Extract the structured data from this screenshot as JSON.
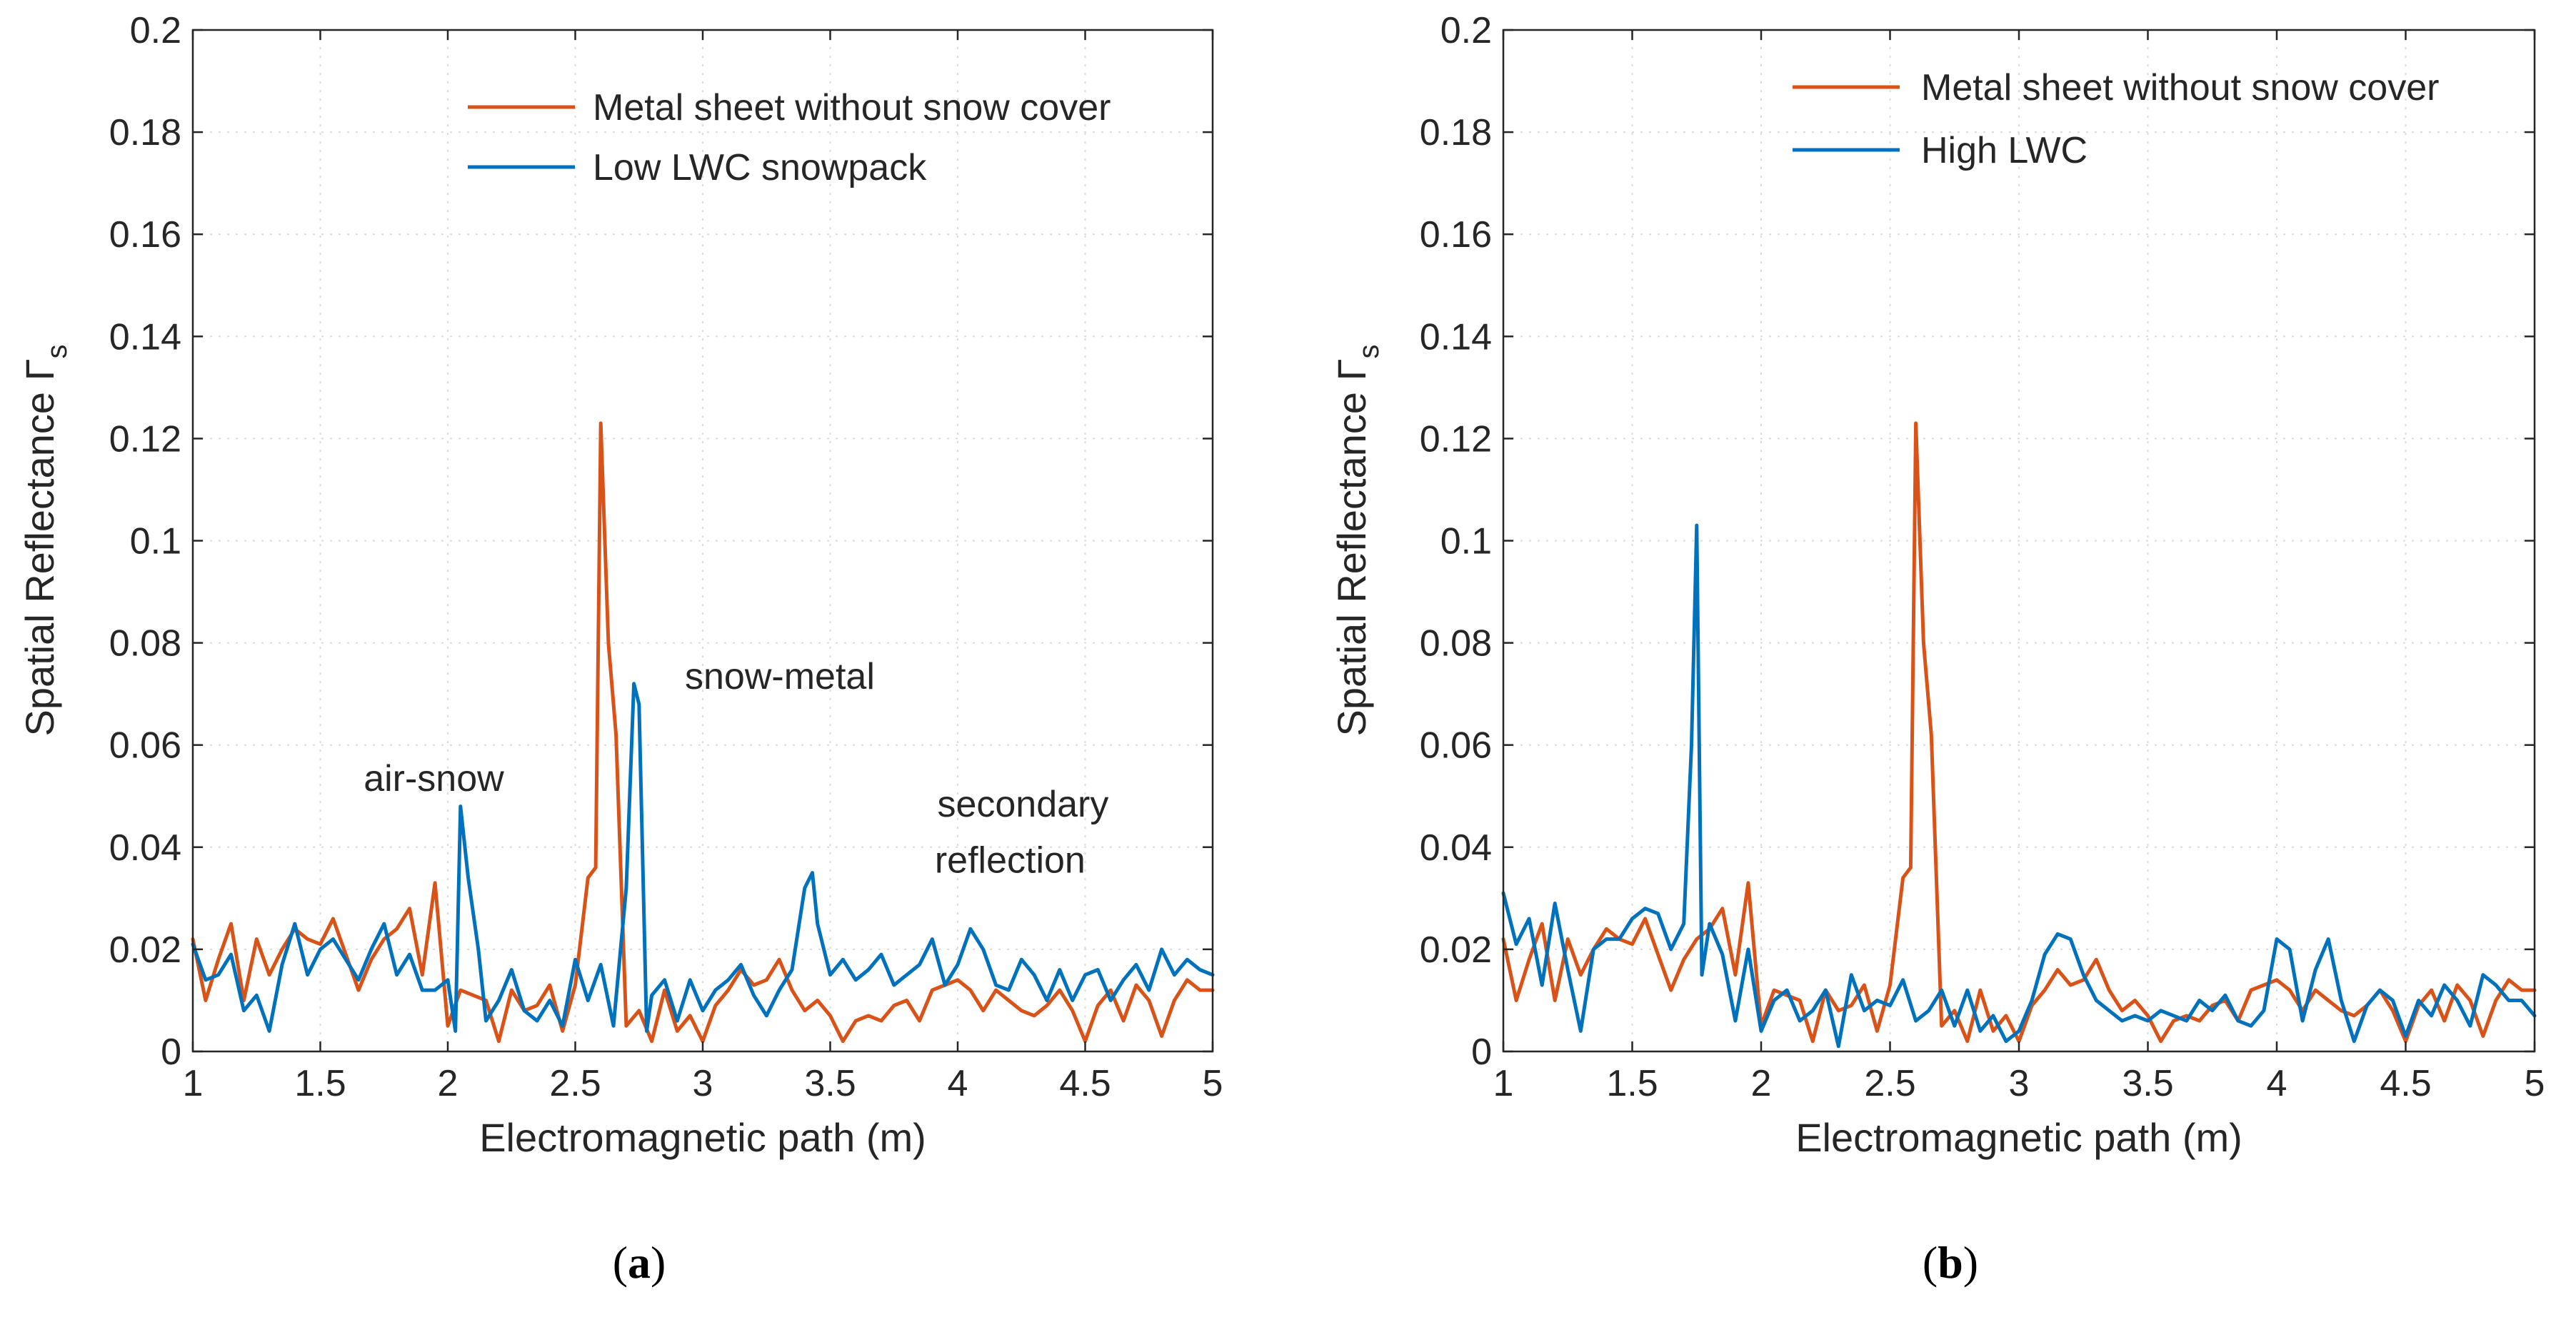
{
  "chart_data": [
    {
      "type": "line",
      "panel": "a",
      "caption": {
        "open": "(",
        "letter": "a",
        "close": ")"
      },
      "xlabel": "Electromagnetic path (m)",
      "ylabel": "Spatial Reflectance Γ",
      "ylabel_subscript": "s",
      "xlim": [
        1,
        5
      ],
      "ylim": [
        0,
        0.2
      ],
      "xticks": [
        1,
        1.5,
        2,
        2.5,
        3,
        3.5,
        4,
        4.5,
        5
      ],
      "xtick_labels": [
        "1",
        "1.5",
        "2",
        "2.5",
        "3",
        "3.5",
        "4",
        "4.5",
        "5"
      ],
      "yticks": [
        0,
        0.02,
        0.04,
        0.06,
        0.08,
        0.1,
        0.12,
        0.14,
        0.16,
        0.18,
        0.2
      ],
      "ytick_labels": [
        "0",
        "0.02",
        "0.04",
        "0.06",
        "0.08",
        "0.1",
        "0.12",
        "0.14",
        "0.16",
        "0.18",
        "0.2"
      ],
      "grid": true,
      "legend_position": "top-right",
      "annotations": [
        {
          "text": "air-snow",
          "x": 1.67,
          "y": 0.051
        },
        {
          "text": "snow-metal",
          "x": 2.93,
          "y": 0.071
        },
        {
          "text": "secondary",
          "x": 3.92,
          "y": 0.046
        },
        {
          "text": "reflection",
          "x": 3.91,
          "y": 0.035
        }
      ],
      "series": [
        {
          "name": "Metal sheet without snow cover",
          "color": "#D95319",
          "x": [
            1.0,
            1.05,
            1.1,
            1.15,
            1.2,
            1.25,
            1.3,
            1.35,
            1.4,
            1.45,
            1.5,
            1.55,
            1.6,
            1.65,
            1.7,
            1.75,
            1.8,
            1.85,
            1.9,
            1.95,
            2.0,
            2.05,
            2.1,
            2.15,
            2.2,
            2.25,
            2.3,
            2.35,
            2.4,
            2.45,
            2.5,
            2.55,
            2.58,
            2.6,
            2.63,
            2.66,
            2.7,
            2.75,
            2.8,
            2.85,
            2.9,
            2.95,
            3.0,
            3.05,
            3.1,
            3.15,
            3.2,
            3.25,
            3.3,
            3.35,
            3.4,
            3.45,
            3.5,
            3.55,
            3.6,
            3.65,
            3.7,
            3.75,
            3.8,
            3.85,
            3.9,
            3.95,
            4.0,
            4.05,
            4.1,
            4.15,
            4.2,
            4.25,
            4.3,
            4.35,
            4.4,
            4.45,
            4.5,
            4.55,
            4.6,
            4.65,
            4.7,
            4.75,
            4.8,
            4.85,
            4.9,
            4.95,
            5.0
          ],
          "y": [
            0.022,
            0.01,
            0.018,
            0.025,
            0.01,
            0.022,
            0.015,
            0.02,
            0.024,
            0.022,
            0.021,
            0.026,
            0.019,
            0.012,
            0.018,
            0.022,
            0.024,
            0.028,
            0.015,
            0.033,
            0.005,
            0.012,
            0.011,
            0.01,
            0.002,
            0.012,
            0.008,
            0.009,
            0.013,
            0.004,
            0.013,
            0.034,
            0.036,
            0.123,
            0.08,
            0.062,
            0.005,
            0.008,
            0.002,
            0.012,
            0.004,
            0.007,
            0.002,
            0.009,
            0.012,
            0.016,
            0.013,
            0.014,
            0.018,
            0.012,
            0.008,
            0.01,
            0.007,
            0.002,
            0.006,
            0.007,
            0.006,
            0.009,
            0.01,
            0.006,
            0.012,
            0.013,
            0.014,
            0.012,
            0.008,
            0.012,
            0.01,
            0.008,
            0.007,
            0.009,
            0.012,
            0.008,
            0.002,
            0.009,
            0.012,
            0.006,
            0.013,
            0.01,
            0.003,
            0.01,
            0.014,
            0.012,
            0.012
          ]
        },
        {
          "name": "Low LWC snowpack",
          "color": "#0072BD",
          "x": [
            1.0,
            1.05,
            1.1,
            1.15,
            1.2,
            1.25,
            1.3,
            1.35,
            1.4,
            1.45,
            1.5,
            1.55,
            1.6,
            1.65,
            1.7,
            1.75,
            1.8,
            1.85,
            1.9,
            1.95,
            2.0,
            2.03,
            2.05,
            2.08,
            2.12,
            2.15,
            2.2,
            2.25,
            2.3,
            2.35,
            2.4,
            2.45,
            2.5,
            2.55,
            2.6,
            2.65,
            2.7,
            2.73,
            2.75,
            2.78,
            2.8,
            2.85,
            2.9,
            2.95,
            3.0,
            3.05,
            3.1,
            3.15,
            3.2,
            3.25,
            3.3,
            3.35,
            3.4,
            3.43,
            3.45,
            3.5,
            3.55,
            3.6,
            3.65,
            3.7,
            3.75,
            3.8,
            3.85,
            3.9,
            3.95,
            4.0,
            4.05,
            4.1,
            4.15,
            4.2,
            4.25,
            4.3,
            4.35,
            4.4,
            4.45,
            4.5,
            4.55,
            4.6,
            4.65,
            4.7,
            4.75,
            4.8,
            4.85,
            4.9,
            4.95,
            5.0
          ],
          "y": [
            0.021,
            0.014,
            0.015,
            0.019,
            0.008,
            0.011,
            0.004,
            0.017,
            0.025,
            0.015,
            0.02,
            0.022,
            0.018,
            0.014,
            0.02,
            0.025,
            0.015,
            0.019,
            0.012,
            0.012,
            0.014,
            0.004,
            0.048,
            0.034,
            0.02,
            0.006,
            0.01,
            0.016,
            0.008,
            0.006,
            0.01,
            0.005,
            0.018,
            0.01,
            0.017,
            0.005,
            0.032,
            0.072,
            0.068,
            0.004,
            0.011,
            0.014,
            0.006,
            0.014,
            0.008,
            0.012,
            0.014,
            0.017,
            0.011,
            0.007,
            0.012,
            0.016,
            0.032,
            0.035,
            0.025,
            0.015,
            0.018,
            0.014,
            0.016,
            0.019,
            0.013,
            0.015,
            0.017,
            0.022,
            0.013,
            0.017,
            0.024,
            0.02,
            0.013,
            0.012,
            0.018,
            0.015,
            0.01,
            0.016,
            0.01,
            0.015,
            0.016,
            0.01,
            0.014,
            0.017,
            0.012,
            0.02,
            0.015,
            0.018,
            0.016,
            0.015
          ]
        }
      ]
    },
    {
      "type": "line",
      "panel": "b",
      "caption": {
        "open": "(",
        "letter": "b",
        "close": ")"
      },
      "xlabel": "Electromagnetic path (m)",
      "ylabel": "Spatial Reflectance Γ",
      "ylabel_subscript": "s",
      "xlim": [
        1,
        5
      ],
      "ylim": [
        0,
        0.2
      ],
      "xticks": [
        1,
        1.5,
        2,
        2.5,
        3,
        3.5,
        4,
        4.5,
        5
      ],
      "xtick_labels": [
        "1",
        "1.5",
        "2",
        "2.5",
        "3",
        "3.5",
        "4",
        "4.5",
        "5"
      ],
      "yticks": [
        0,
        0.02,
        0.04,
        0.06,
        0.08,
        0.1,
        0.12,
        0.14,
        0.16,
        0.18,
        0.2
      ],
      "ytick_labels": [
        "0",
        "0.02",
        "0.04",
        "0.06",
        "0.08",
        "0.1",
        "0.12",
        "0.14",
        "0.16",
        "0.18",
        "0.2"
      ],
      "grid": true,
      "legend_position": "top-right",
      "annotations": [],
      "series": [
        {
          "name": "Metal sheet without snow cover",
          "color": "#D95319",
          "x": [
            1.0,
            1.05,
            1.1,
            1.15,
            1.2,
            1.25,
            1.3,
            1.35,
            1.4,
            1.45,
            1.5,
            1.55,
            1.6,
            1.65,
            1.7,
            1.75,
            1.8,
            1.85,
            1.9,
            1.95,
            2.0,
            2.05,
            2.1,
            2.15,
            2.2,
            2.25,
            2.3,
            2.35,
            2.4,
            2.45,
            2.5,
            2.55,
            2.58,
            2.6,
            2.63,
            2.66,
            2.7,
            2.75,
            2.8,
            2.85,
            2.9,
            2.95,
            3.0,
            3.05,
            3.1,
            3.15,
            3.2,
            3.25,
            3.3,
            3.35,
            3.4,
            3.45,
            3.5,
            3.55,
            3.6,
            3.65,
            3.7,
            3.75,
            3.8,
            3.85,
            3.9,
            3.95,
            4.0,
            4.05,
            4.1,
            4.15,
            4.2,
            4.25,
            4.3,
            4.35,
            4.4,
            4.45,
            4.5,
            4.55,
            4.6,
            4.65,
            4.7,
            4.75,
            4.8,
            4.85,
            4.9,
            4.95,
            5.0
          ],
          "y": [
            0.022,
            0.01,
            0.018,
            0.025,
            0.01,
            0.022,
            0.015,
            0.02,
            0.024,
            0.022,
            0.021,
            0.026,
            0.019,
            0.012,
            0.018,
            0.022,
            0.024,
            0.028,
            0.015,
            0.033,
            0.005,
            0.012,
            0.011,
            0.01,
            0.002,
            0.012,
            0.008,
            0.009,
            0.013,
            0.004,
            0.013,
            0.034,
            0.036,
            0.123,
            0.08,
            0.062,
            0.005,
            0.008,
            0.002,
            0.012,
            0.004,
            0.007,
            0.002,
            0.009,
            0.012,
            0.016,
            0.013,
            0.014,
            0.018,
            0.012,
            0.008,
            0.01,
            0.007,
            0.002,
            0.006,
            0.007,
            0.006,
            0.009,
            0.01,
            0.006,
            0.012,
            0.013,
            0.014,
            0.012,
            0.008,
            0.012,
            0.01,
            0.008,
            0.007,
            0.009,
            0.012,
            0.008,
            0.002,
            0.009,
            0.012,
            0.006,
            0.013,
            0.01,
            0.003,
            0.01,
            0.014,
            0.012,
            0.012
          ]
        },
        {
          "name": "High LWC",
          "color": "#0072BD",
          "x": [
            1.0,
            1.05,
            1.1,
            1.15,
            1.2,
            1.25,
            1.3,
            1.35,
            1.4,
            1.45,
            1.5,
            1.55,
            1.6,
            1.65,
            1.7,
            1.73,
            1.75,
            1.77,
            1.8,
            1.85,
            1.9,
            1.95,
            2.0,
            2.05,
            2.1,
            2.15,
            2.2,
            2.25,
            2.3,
            2.35,
            2.4,
            2.45,
            2.5,
            2.55,
            2.6,
            2.65,
            2.7,
            2.75,
            2.8,
            2.85,
            2.9,
            2.95,
            3.0,
            3.05,
            3.1,
            3.15,
            3.2,
            3.25,
            3.3,
            3.35,
            3.4,
            3.45,
            3.5,
            3.55,
            3.6,
            3.65,
            3.7,
            3.75,
            3.8,
            3.85,
            3.9,
            3.95,
            4.0,
            4.05,
            4.1,
            4.15,
            4.2,
            4.25,
            4.3,
            4.35,
            4.4,
            4.45,
            4.5,
            4.55,
            4.6,
            4.65,
            4.7,
            4.75,
            4.8,
            4.85,
            4.9,
            4.95,
            5.0
          ],
          "y": [
            0.031,
            0.021,
            0.026,
            0.013,
            0.029,
            0.016,
            0.004,
            0.02,
            0.022,
            0.022,
            0.026,
            0.028,
            0.027,
            0.02,
            0.025,
            0.06,
            0.103,
            0.015,
            0.025,
            0.019,
            0.006,
            0.02,
            0.004,
            0.01,
            0.012,
            0.006,
            0.008,
            0.012,
            0.001,
            0.015,
            0.008,
            0.01,
            0.009,
            0.014,
            0.006,
            0.008,
            0.012,
            0.005,
            0.012,
            0.004,
            0.007,
            0.002,
            0.004,
            0.01,
            0.019,
            0.023,
            0.022,
            0.015,
            0.01,
            0.008,
            0.006,
            0.007,
            0.006,
            0.008,
            0.007,
            0.006,
            0.01,
            0.008,
            0.011,
            0.006,
            0.005,
            0.008,
            0.022,
            0.02,
            0.006,
            0.016,
            0.022,
            0.01,
            0.002,
            0.009,
            0.012,
            0.01,
            0.003,
            0.01,
            0.007,
            0.013,
            0.01,
            0.005,
            0.015,
            0.013,
            0.01,
            0.01,
            0.007
          ]
        }
      ]
    }
  ]
}
